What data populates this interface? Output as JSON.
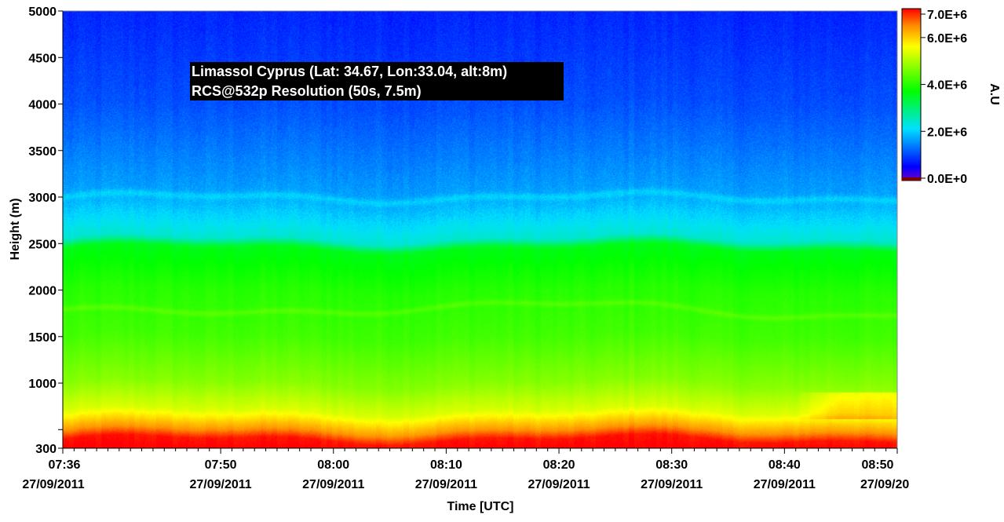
{
  "chart_data": {
    "type": "heatmap",
    "title": "",
    "annotation": {
      "line1": "Limassol Cyprus (Lat: 34.67, Lon:33.04, alt:8m)",
      "line2": "RCS@532p Resolution (50s, 7.5m)"
    },
    "xlabel": "Time [UTC]",
    "ylabel": "Height (m)",
    "colorbar_label": "A.U",
    "x_range_minutes": [
      "07:36",
      "08:50"
    ],
    "x_ticks": [
      {
        "time": "07:36",
        "date": "27/09/2011"
      },
      {
        "time": "07:50",
        "date": "27/09/2011"
      },
      {
        "time": "08:00",
        "date": "27/09/2011"
      },
      {
        "time": "08:10",
        "date": "27/09/2011"
      },
      {
        "time": "08:20",
        "date": "27/09/2011"
      },
      {
        "time": "08:30",
        "date": "27/09/2011"
      },
      {
        "time": "08:40",
        "date": "27/09/2011"
      },
      {
        "time": "08:50",
        "date": "27/09/20"
      }
    ],
    "ylim": [
      300,
      5000
    ],
    "y_ticks": [
      {
        "value": 300,
        "label": "300"
      },
      {
        "value": 500,
        "label": ""
      },
      {
        "value": 1000,
        "label": "1000"
      },
      {
        "value": 1500,
        "label": "1500"
      },
      {
        "value": 2000,
        "label": "2000"
      },
      {
        "value": 2500,
        "label": "2500"
      },
      {
        "value": 3000,
        "label": "3000"
      },
      {
        "value": 3500,
        "label": "3500"
      },
      {
        "value": 4000,
        "label": "4000"
      },
      {
        "value": 4500,
        "label": "4500"
      },
      {
        "value": 5000,
        "label": "5000"
      }
    ],
    "colorbar": {
      "range": [
        0,
        7000000
      ],
      "ticks": [
        {
          "value": 0,
          "label": "0.0E+0"
        },
        {
          "value": 2000000,
          "label": "2.0E+6"
        },
        {
          "value": 4000000,
          "label": "4.0E+6"
        },
        {
          "value": 6000000,
          "label": "6.0E+6"
        },
        {
          "value": 7000000,
          "label": "7.0E+6"
        }
      ]
    },
    "profile_summary": [
      {
        "height_m": 300,
        "value": 7000000
      },
      {
        "height_m": 400,
        "value": 6900000
      },
      {
        "height_m": 500,
        "value": 6200000
      },
      {
        "height_m": 700,
        "value": 5200000
      },
      {
        "height_m": 1000,
        "value": 4600000
      },
      {
        "height_m": 1500,
        "value": 4100000
      },
      {
        "height_m": 2000,
        "value": 3900000
      },
      {
        "height_m": 2450,
        "value": 3500000
      },
      {
        "height_m": 2550,
        "value": 2400000
      },
      {
        "height_m": 3000,
        "value": 1700000
      },
      {
        "height_m": 4000,
        "value": 1100000
      },
      {
        "height_m": 5000,
        "value": 800000
      }
    ],
    "features": [
      {
        "name": "aerosol layer top",
        "height_m": 2500
      },
      {
        "name": "intermediate layer",
        "height_m": 1800
      },
      {
        "name": "faint upper layer",
        "height_m": 3000
      }
    ]
  }
}
